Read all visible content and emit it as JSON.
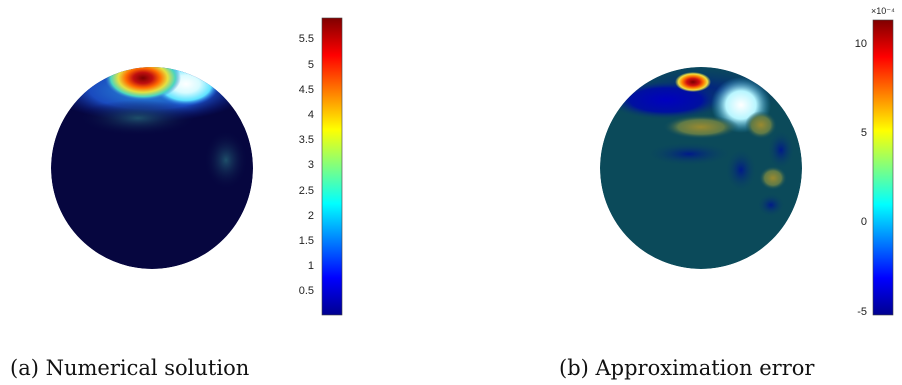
{
  "figures": [
    {
      "id": "a",
      "caption": "(a) Numerical solution",
      "colorbar": {
        "min": 0,
        "max": 5.9,
        "ticks": [
          "0.5",
          "1",
          "1.5",
          "2",
          "2.5",
          "3",
          "3.5",
          "4",
          "4.5",
          "5",
          "5.5"
        ],
        "tick_values": [
          0.5,
          1,
          1.5,
          2,
          2.5,
          3,
          3.5,
          4,
          4.5,
          5,
          5.5
        ],
        "colormap": "jet"
      }
    },
    {
      "id": "b",
      "caption": "(b) Approximation error",
      "colorbar": {
        "min": -5,
        "max": 11.5,
        "ticks": [
          "-5",
          "0",
          "5",
          "10"
        ],
        "tick_values": [
          -5,
          0,
          5,
          10
        ],
        "exponent": "×10⁻⁴",
        "colormap": "jet"
      }
    }
  ],
  "colors": {
    "jet": [
      "#00008f",
      "#0000ff",
      "#00ffff",
      "#ffff00",
      "#ff0000",
      "#800000"
    ],
    "background_a": "#06063f",
    "background_b": "#0b4a5a"
  }
}
